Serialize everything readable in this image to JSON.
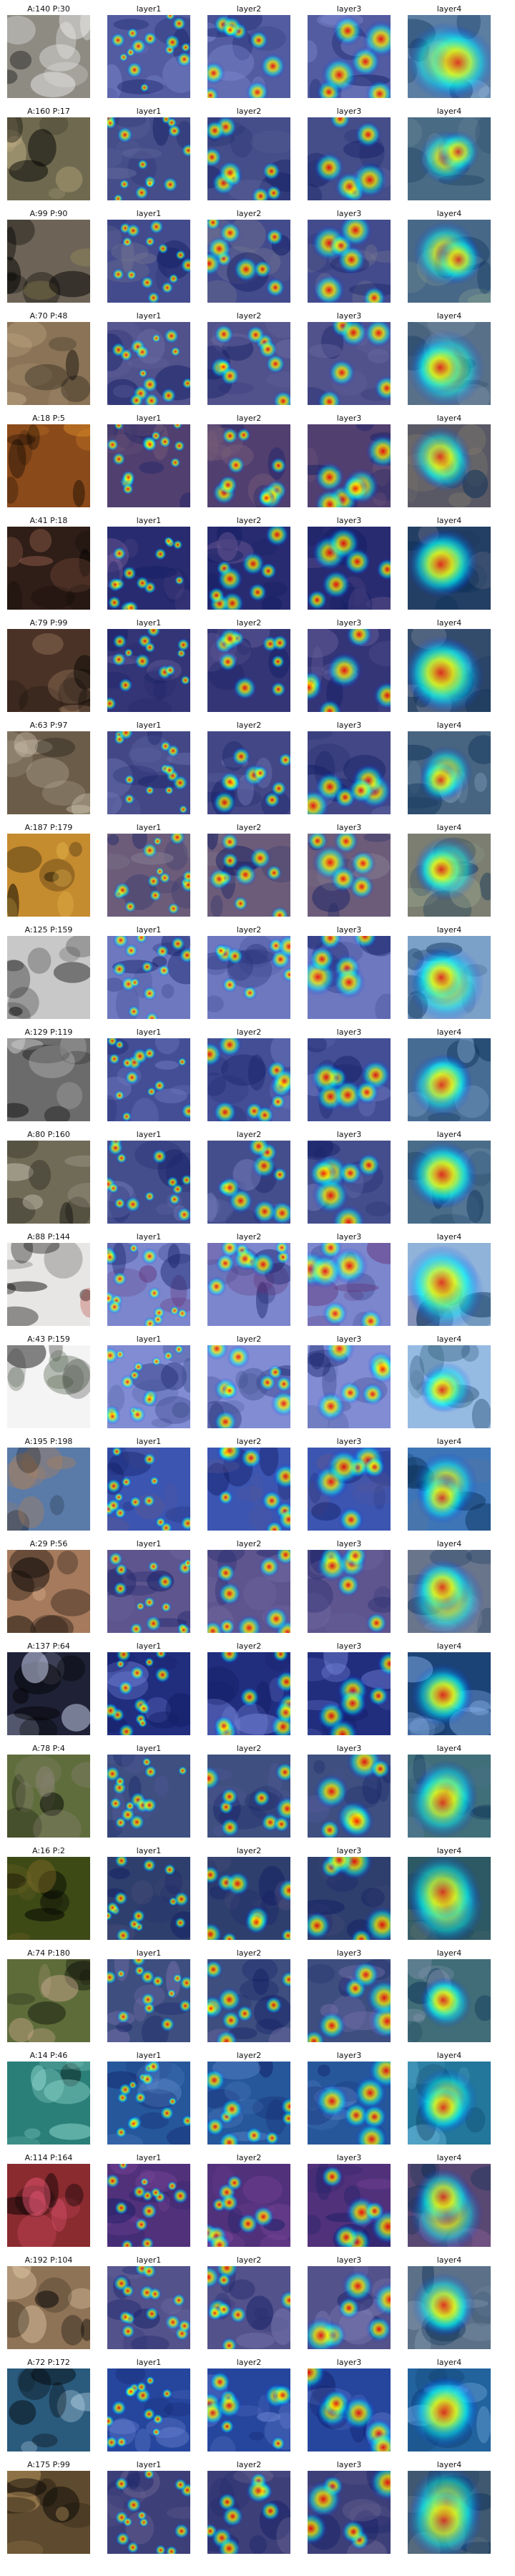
{
  "column_titles": [
    "layer1",
    "layer2",
    "layer3",
    "layer4"
  ],
  "rows": [
    {
      "label": "A:140 P:30",
      "base": "#8e8b83",
      "accent": "#f2f2f2"
    },
    {
      "label": "A:160 P:17",
      "base": "#6f6a4f",
      "accent": "#c6b488"
    },
    {
      "label": "A:99 P:90",
      "base": "#6d6457",
      "accent": "#d7c35f"
    },
    {
      "label": "A:70 P:48",
      "base": "#8a7356",
      "accent": "#c8b08c"
    },
    {
      "label": "A:18 P:5",
      "base": "#8a4a1a",
      "accent": "#dd8b2a"
    },
    {
      "label": "A:41 P:18",
      "base": "#2f1d17",
      "accent": "#c78267"
    },
    {
      "label": "A:79 P:99",
      "base": "#4a3326",
      "accent": "#c9a080"
    },
    {
      "label": "A:63 P:97",
      "base": "#6a5c49",
      "accent": "#d2c7b2"
    },
    {
      "label": "A:187 P:179",
      "base": "#c58b2f",
      "accent": "#ffd764"
    },
    {
      "label": "A:125 P:159",
      "base": "#c8c8c8",
      "accent": "#3a3a3a"
    },
    {
      "label": "A:129 P:119",
      "base": "#6b6b6b",
      "accent": "#d9d9d9"
    },
    {
      "label": "A:80 P:160",
      "base": "#6f6b57",
      "accent": "#ded6c7"
    },
    {
      "label": "A:88 P:144",
      "base": "#e8e6e4",
      "accent": "#b02622"
    },
    {
      "label": "A:43 P:159",
      "base": "#f4f4f4",
      "accent": "#5c6a55"
    },
    {
      "label": "A:195 P:198",
      "base": "#5a7aa8",
      "accent": "#a87f5d"
    },
    {
      "label": "A:29 P:56",
      "base": "#a67a5c",
      "accent": "#d4a987"
    },
    {
      "label": "A:137 P:64",
      "base": "#1f2236",
      "accent": "#d9e1ff"
    },
    {
      "label": "A:78 P:4",
      "base": "#5f6d3c",
      "accent": "#8c8477"
    },
    {
      "label": "A:16 P:2",
      "base": "#3d4a16",
      "accent": "#8b6e2a"
    },
    {
      "label": "A:74 P:180",
      "base": "#5e6c3a",
      "accent": "#e0b69e"
    },
    {
      "label": "A:14 P:46",
      "base": "#2a7f78",
      "accent": "#9ae2d8"
    },
    {
      "label": "A:114 P:164",
      "base": "#8a2b2f",
      "accent": "#f15b7c"
    },
    {
      "label": "A:192 P:104",
      "base": "#8f7356",
      "accent": "#e2c9a7"
    },
    {
      "label": "A:72 P:172",
      "base": "#2a5a7c",
      "accent": "#d8f0ff"
    },
    {
      "label": "A:175 P:99",
      "base": "#5e4a2e",
      "accent": "#d2a96b"
    }
  ],
  "colors": {
    "jet_low": "#00007f",
    "jet_mid": "#00ffff",
    "jet_high": "#ff0000",
    "overlay_blue": "#2236b8"
  },
  "images": [
    {
      "kind": "original photo"
    },
    {
      "kind": "layer1 heatmap overlay"
    },
    {
      "kind": "layer2 heatmap overlay"
    },
    {
      "kind": "layer3 heatmap overlay"
    },
    {
      "kind": "layer4 heatmap overlay"
    }
  ]
}
